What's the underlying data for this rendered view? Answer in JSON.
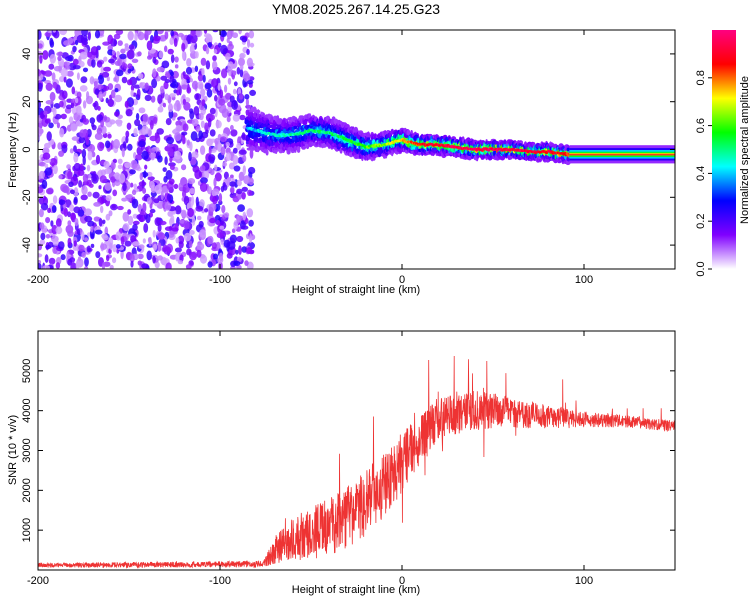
{
  "chart_data": [
    {
      "type": "heatmap",
      "title": "YM08.2025.267.14.25.G23",
      "xlabel": "Height of straight line (km)",
      "ylabel": "Frequency (Hz)",
      "xlim": [
        -200,
        150
      ],
      "ylim": [
        -50,
        50
      ],
      "x_ticks": [
        -200,
        -100,
        0,
        100
      ],
      "y_ticks": [
        -40,
        -20,
        0,
        20,
        40
      ],
      "colorbar": {
        "label": "Normalized spectral amplitude",
        "range": [
          0,
          1
        ],
        "ticks": [
          0.0,
          0.2,
          0.4,
          0.6,
          0.8
        ],
        "colors": [
          "#ffffff",
          "#8000ff",
          "#0000ff",
          "#00ffff",
          "#00ff00",
          "#ffff00",
          "#ff0000",
          "#ff0080"
        ]
      },
      "noise_region": {
        "x_range": [
          -200,
          -82
        ],
        "freq_range": [
          -50,
          50
        ],
        "amplitude_range": [
          0.05,
          0.25
        ]
      },
      "track": [
        {
          "x": -85,
          "freq": 9,
          "width": 3.0,
          "amp": 0.35
        },
        {
          "x": -80,
          "freq": 8,
          "width": 2.8,
          "amp": 0.36
        },
        {
          "x": -75,
          "freq": 7,
          "width": 2.6,
          "amp": 0.38
        },
        {
          "x": -70,
          "freq": 6,
          "width": 2.4,
          "amp": 0.4
        },
        {
          "x": -60,
          "freq": 6,
          "width": 2.2,
          "amp": 0.42
        },
        {
          "x": -50,
          "freq": 8,
          "width": 2.1,
          "amp": 0.45
        },
        {
          "x": -40,
          "freq": 7,
          "width": 2.0,
          "amp": 0.47
        },
        {
          "x": -30,
          "freq": 4,
          "width": 2.0,
          "amp": 0.5
        },
        {
          "x": -20,
          "freq": 1,
          "width": 1.8,
          "amp": 0.55
        },
        {
          "x": -10,
          "freq": 2,
          "width": 1.6,
          "amp": 0.6
        },
        {
          "x": 0,
          "freq": 4,
          "width": 1.5,
          "amp": 0.7
        },
        {
          "x": 10,
          "freq": 2,
          "width": 1.3,
          "amp": 0.8
        },
        {
          "x": 20,
          "freq": 2,
          "width": 1.2,
          "amp": 0.85
        },
        {
          "x": 30,
          "freq": 1,
          "width": 1.2,
          "amp": 0.88
        },
        {
          "x": 40,
          "freq": 0,
          "width": 1.1,
          "amp": 0.9
        },
        {
          "x": 50,
          "freq": 0,
          "width": 1.1,
          "amp": 0.9
        },
        {
          "x": 60,
          "freq": 0,
          "width": 1.0,
          "amp": 0.88
        },
        {
          "x": 70,
          "freq": -1,
          "width": 1.0,
          "amp": 0.86
        },
        {
          "x": 80,
          "freq": -1,
          "width": 1.0,
          "amp": 0.85
        },
        {
          "x": 90,
          "freq": -2,
          "width": 1.0,
          "amp": 0.8
        },
        {
          "x": 150,
          "freq": -2,
          "width": 1.0,
          "amp": 0.8
        }
      ]
    },
    {
      "type": "line",
      "xlabel": "Height of straight line (km)",
      "ylabel": "SNR (10 * v/v)",
      "xlim": [
        -200,
        150
      ],
      "ylim": [
        0,
        6000
      ],
      "x_ticks": [
        -200,
        -100,
        0,
        100
      ],
      "y_ticks": [
        1000,
        2000,
        3000,
        4000,
        5000
      ],
      "series": [
        {
          "name": "SNR",
          "color": "#ee3333",
          "envelope_x": [
            -200,
            -76,
            -70,
            -60,
            -50,
            -40,
            -30,
            -20,
            -10,
            0,
            10,
            20,
            30,
            40,
            50,
            60,
            70,
            80,
            90,
            100,
            110,
            120,
            130,
            140,
            150
          ],
          "envelope_mean": [
            120,
            150,
            500,
            800,
            900,
            1100,
            1300,
            1700,
            2100,
            2700,
            3300,
            3800,
            3900,
            4000,
            4000,
            3950,
            3900,
            3850,
            3800,
            3800,
            3750,
            3750,
            3700,
            3650,
            3600
          ],
          "envelope_noise": [
            60,
            80,
            350,
            550,
            650,
            750,
            800,
            850,
            800,
            750,
            600,
            550,
            500,
            500,
            450,
            400,
            350,
            300,
            250,
            200,
            180,
            160,
            150,
            150,
            150
          ]
        }
      ]
    }
  ]
}
